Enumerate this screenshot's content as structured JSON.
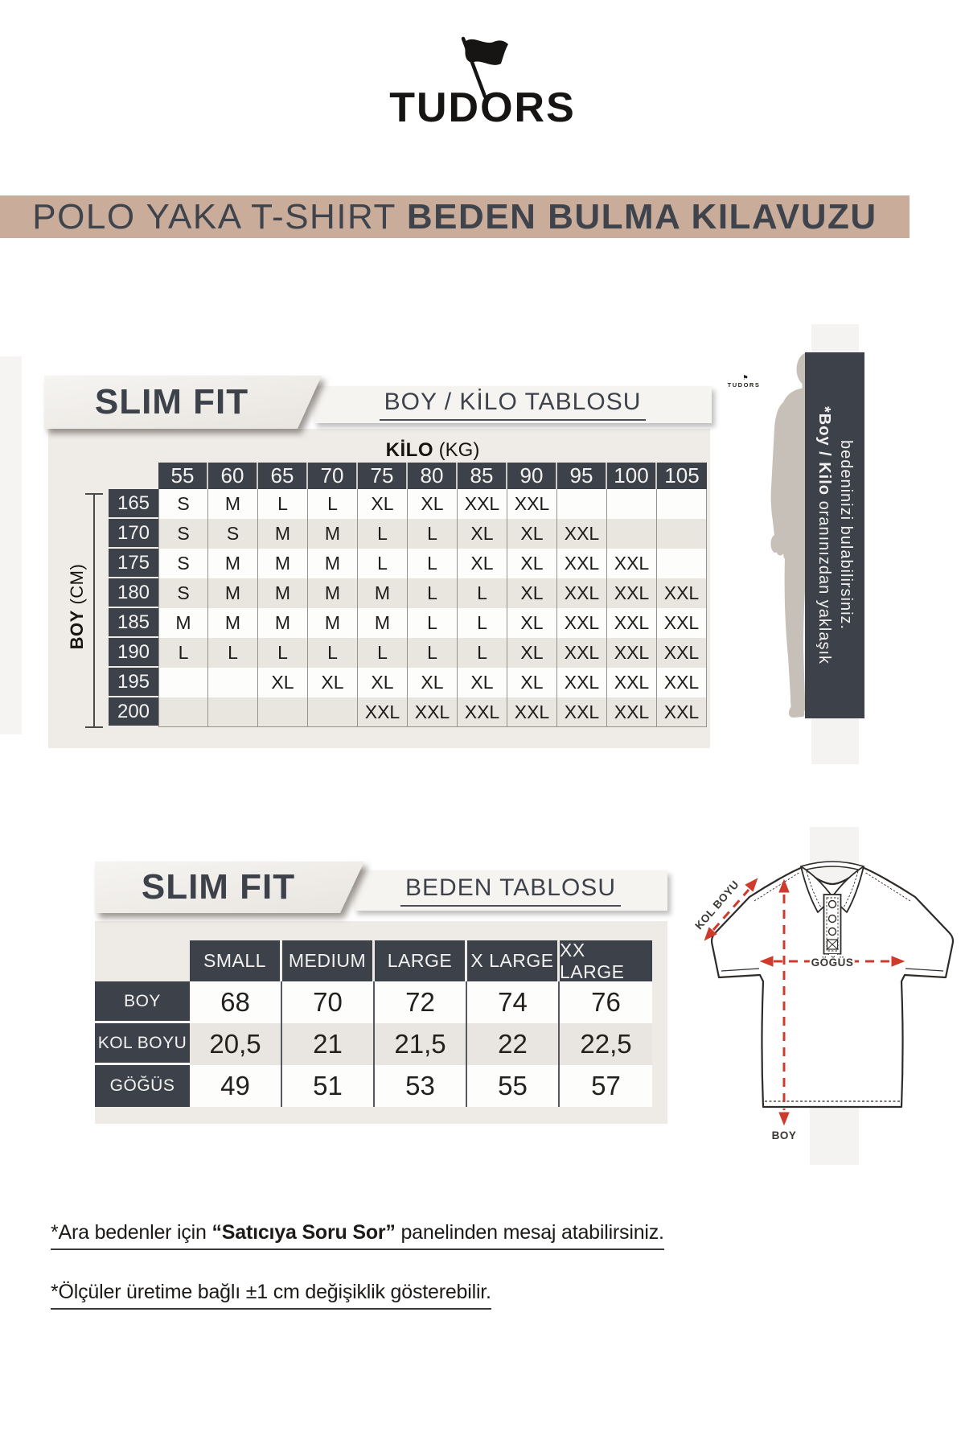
{
  "brand": {
    "name": "TUDORS",
    "mini_name": "TUDORS"
  },
  "banner": {
    "regular": "POLO YAKA T-SHIRT ",
    "bold": "BEDEN BULMA KILAVUZU"
  },
  "colors": {
    "accent_dark": "#3d424a",
    "banner_bg": "#c9ac99",
    "panel_bg": "#efece7",
    "row_alt": "#e9e5df",
    "arrow_red": "#cf3a2d"
  },
  "fit_table": {
    "ribbon": "SLIM FIT",
    "title": "BOY / KİLO TABLOSU",
    "col_group_bold": "KİLO",
    "col_group_unit": " (KG)",
    "row_group_bold": "BOY",
    "row_group_unit": " (CM)",
    "weights": [
      "55",
      "60",
      "65",
      "70",
      "75",
      "80",
      "85",
      "90",
      "95",
      "100",
      "105"
    ],
    "heights": [
      "165",
      "170",
      "175",
      "180",
      "185",
      "190",
      "195",
      "200"
    ],
    "cells": [
      [
        "S",
        "M",
        "L",
        "L",
        "XL",
        "XL",
        "XXL",
        "XXL",
        "",
        "",
        ""
      ],
      [
        "S",
        "S",
        "M",
        "M",
        "L",
        "L",
        "XL",
        "XL",
        "XXL",
        "",
        ""
      ],
      [
        "S",
        "M",
        "M",
        "M",
        "L",
        "L",
        "XL",
        "XL",
        "XXL",
        "XXL",
        ""
      ],
      [
        "S",
        "M",
        "M",
        "M",
        "M",
        "L",
        "L",
        "XL",
        "XXL",
        "XXL",
        "XXL"
      ],
      [
        "M",
        "M",
        "M",
        "M",
        "M",
        "L",
        "L",
        "XL",
        "XXL",
        "XXL",
        "XXL"
      ],
      [
        "L",
        "L",
        "L",
        "L",
        "L",
        "L",
        "L",
        "XL",
        "XXL",
        "XXL",
        "XXL"
      ],
      [
        "",
        "",
        "XL",
        "XL",
        "XL",
        "XL",
        "XL",
        "XL",
        "XXL",
        "XXL",
        "XXL"
      ],
      [
        "",
        "",
        "",
        "",
        "XXL",
        "XXL",
        "XXL",
        "XXL",
        "XXL",
        "XXL",
        "XXL"
      ]
    ],
    "side_note_bold": "*Boy / Kilo",
    "side_note_line1_rest": " oranınızdan yaklaşık",
    "side_note_line2": "bedeninizi bulabilirsiniz."
  },
  "size_table": {
    "ribbon": "SLIM FIT",
    "title": "BEDEN TABLOSU",
    "sizes": [
      "SMALL",
      "MEDIUM",
      "LARGE",
      "X LARGE",
      "XX LARGE"
    ],
    "rows": [
      {
        "label": "BOY",
        "values": [
          "68",
          "70",
          "72",
          "74",
          "76"
        ]
      },
      {
        "label": "KOL BOYU",
        "values": [
          "20,5",
          "21",
          "21,5",
          "22",
          "22,5"
        ]
      },
      {
        "label": "GÖĞÜS",
        "values": [
          "49",
          "51",
          "53",
          "55",
          "57"
        ]
      }
    ]
  },
  "diagram": {
    "labels": {
      "sleeve": "KOL BOYU",
      "chest": "GÖĞÜS",
      "length": "BOY"
    }
  },
  "notes": [
    {
      "pre": "*Ara bedenler için ",
      "bold": "“Satıcıya Soru Sor”",
      "post": " panelinden mesaj atabilirsiniz."
    },
    {
      "pre": "*Ölçüler üretime bağlı ±1 cm değişiklik gösterebilir.",
      "bold": "",
      "post": ""
    }
  ]
}
